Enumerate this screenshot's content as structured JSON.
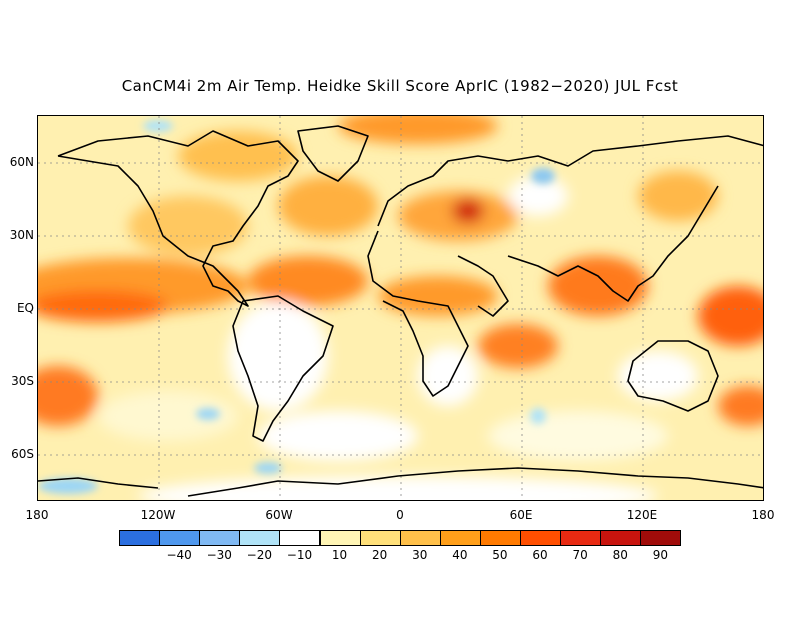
{
  "title": "CanCM4i 2m Air Temp. Heidke Skill Score AprIC (1982−2020) JUL Fcst",
  "map": {
    "lat_labels": [
      "60N",
      "30N",
      "EQ",
      "30S",
      "60S"
    ],
    "lon_labels": [
      "180",
      "120W",
      "60W",
      "0",
      "60E",
      "120E",
      "180"
    ]
  },
  "colorbar": {
    "colors": [
      "#2b6fe0",
      "#4f98ee",
      "#80b9f3",
      "#b0e3f7",
      "#ffffff",
      "#fff5b5",
      "#ffe07a",
      "#ffc04a",
      "#ff9f1a",
      "#ff7a00",
      "#ff4f00",
      "#e82a12",
      "#c8140e",
      "#a00c0a"
    ],
    "labels": [
      "−40",
      "−30",
      "−20",
      "−10",
      "10",
      "20",
      "30",
      "40",
      "50",
      "60",
      "70",
      "80",
      "90"
    ]
  }
}
